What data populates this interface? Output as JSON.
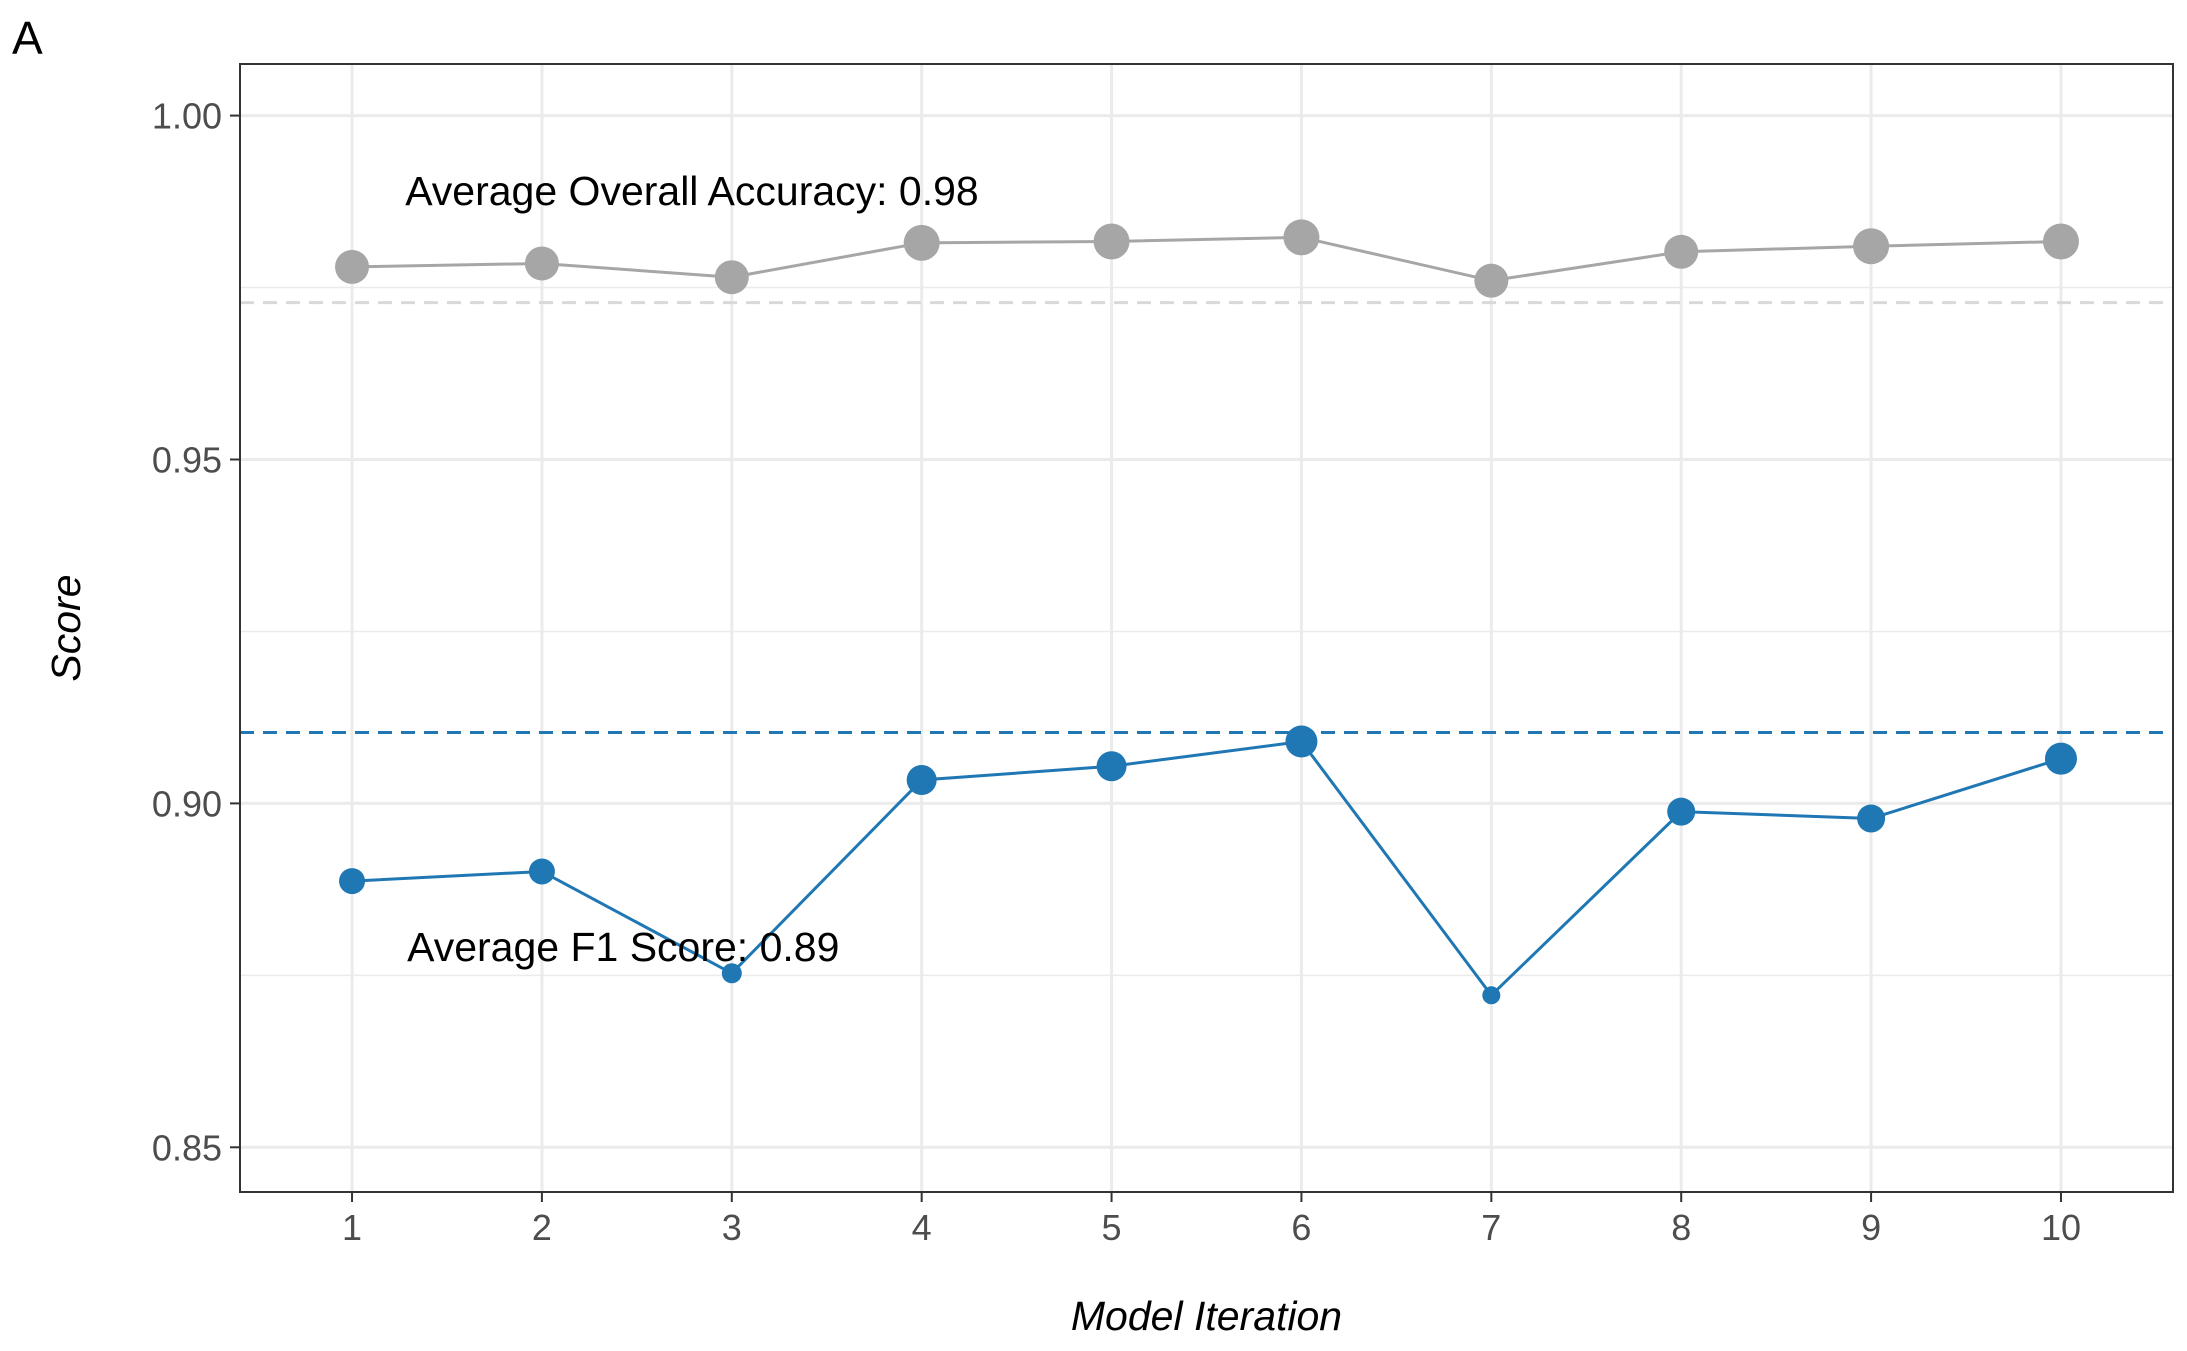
{
  "panel_label": "A",
  "colors": {
    "accuracy": "#A6A6A6",
    "f1": "#1F77B4",
    "accuracy_ref_line": "#D9D9D9",
    "f1_ref_line": "#1F77B4",
    "grid": "#EBEBEB",
    "axis_text": "#4D4D4D"
  },
  "chart_data": {
    "type": "line",
    "title": "",
    "xlabel": "Model Iteration",
    "ylabel": "Score",
    "x": [
      1,
      2,
      3,
      4,
      5,
      6,
      7,
      8,
      9,
      10
    ],
    "xticks": [
      "1",
      "2",
      "3",
      "4",
      "5",
      "6",
      "7",
      "8",
      "9",
      "10"
    ],
    "xlim": [
      0.41,
      10.59
    ],
    "ylim": [
      0.8435,
      1.0075
    ],
    "yticks": [
      "0.85",
      "0.90",
      "0.95",
      "1.00"
    ],
    "ytick_values": [
      0.85,
      0.9,
      0.95,
      1.0
    ],
    "grid": true,
    "legend": "none",
    "series": [
      {
        "key": "accuracy",
        "values": [
          0.978,
          0.9785,
          0.9765,
          0.9815,
          0.9817,
          0.9823,
          0.976,
          0.9802,
          0.981,
          0.9817
        ],
        "point_size": [
          17,
          17,
          17,
          18,
          18,
          18,
          17,
          17,
          18,
          18
        ],
        "reference_line": 0.9728,
        "annotation": "Average Overall Accuracy:  0.98",
        "annotation_anchor": [
          1.28,
          0.989
        ]
      },
      {
        "key": "f1",
        "values": [
          0.8887,
          0.8901,
          0.8753,
          0.9034,
          0.9054,
          0.909,
          0.8721,
          0.8988,
          0.8978,
          0.9065
        ],
        "point_size": [
          13,
          13,
          10,
          15,
          15,
          16,
          9,
          14,
          14,
          16
        ],
        "reference_line": 0.9103,
        "annotation": "Average F1 Score:  0.89",
        "annotation_anchor": [
          1.29,
          0.8791
        ]
      }
    ]
  }
}
